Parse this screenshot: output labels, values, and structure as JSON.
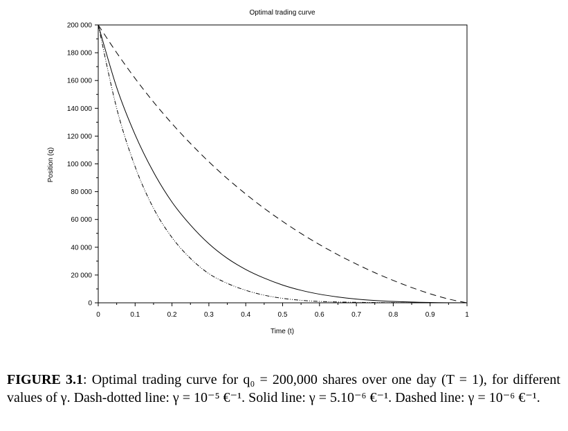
{
  "chart_data": {
    "type": "line",
    "title": "Optimal trading curve",
    "xlabel": "Time (t)",
    "ylabel": "Position (q)",
    "xlim": [
      0,
      1
    ],
    "ylim": [
      0,
      200000
    ],
    "x_ticks": [
      "0",
      "0.1",
      "0.2",
      "0.3",
      "0.4",
      "0.5",
      "0.6",
      "0.7",
      "0.8",
      "0.9",
      "1"
    ],
    "y_ticks": [
      "0",
      "20 000",
      "40 000",
      "60 000",
      "80 000",
      "100 000",
      "120 000",
      "140 000",
      "160 000",
      "180 000",
      "200 000"
    ],
    "grid": false,
    "legend": "none",
    "x": [
      0,
      0.05,
      0.1,
      0.15,
      0.2,
      0.25,
      0.3,
      0.35,
      0.4,
      0.45,
      0.5,
      0.55,
      0.6,
      0.65,
      0.7,
      0.75,
      0.8,
      0.85,
      0.9,
      0.95,
      1
    ],
    "series": [
      {
        "style": "dash-dot",
        "values": [
          200000,
          140000,
          98000,
          68000,
          47000,
          32000,
          21000,
          14000,
          9000,
          5500,
          3200,
          1800,
          1000,
          600,
          350,
          200,
          110,
          60,
          30,
          10,
          0
        ]
      },
      {
        "style": "solid",
        "values": [
          200000,
          155000,
          121000,
          94000,
          72500,
          56000,
          42500,
          32000,
          24000,
          17800,
          12800,
          9000,
          6200,
          4200,
          2700,
          1700,
          1000,
          550,
          250,
          80,
          0
        ]
      },
      {
        "style": "dashed",
        "values": [
          200000,
          180000,
          161500,
          144500,
          129000,
          114700,
          101500,
          89400,
          78300,
          68000,
          58600,
          49900,
          41900,
          34600,
          27900,
          21700,
          16100,
          11000,
          6500,
          2700,
          0
        ]
      }
    ]
  },
  "caption": {
    "label": "FIGURE 3.1",
    "text": ": Optimal trading curve for q₀ = 200,000 shares over one day (T = 1), for different values of γ. Dash-dotted line: γ = 10⁻⁵ €⁻¹. Solid line: γ = 5.10⁻⁶ €⁻¹. Dashed line: γ = 10⁻⁶ €⁻¹."
  }
}
